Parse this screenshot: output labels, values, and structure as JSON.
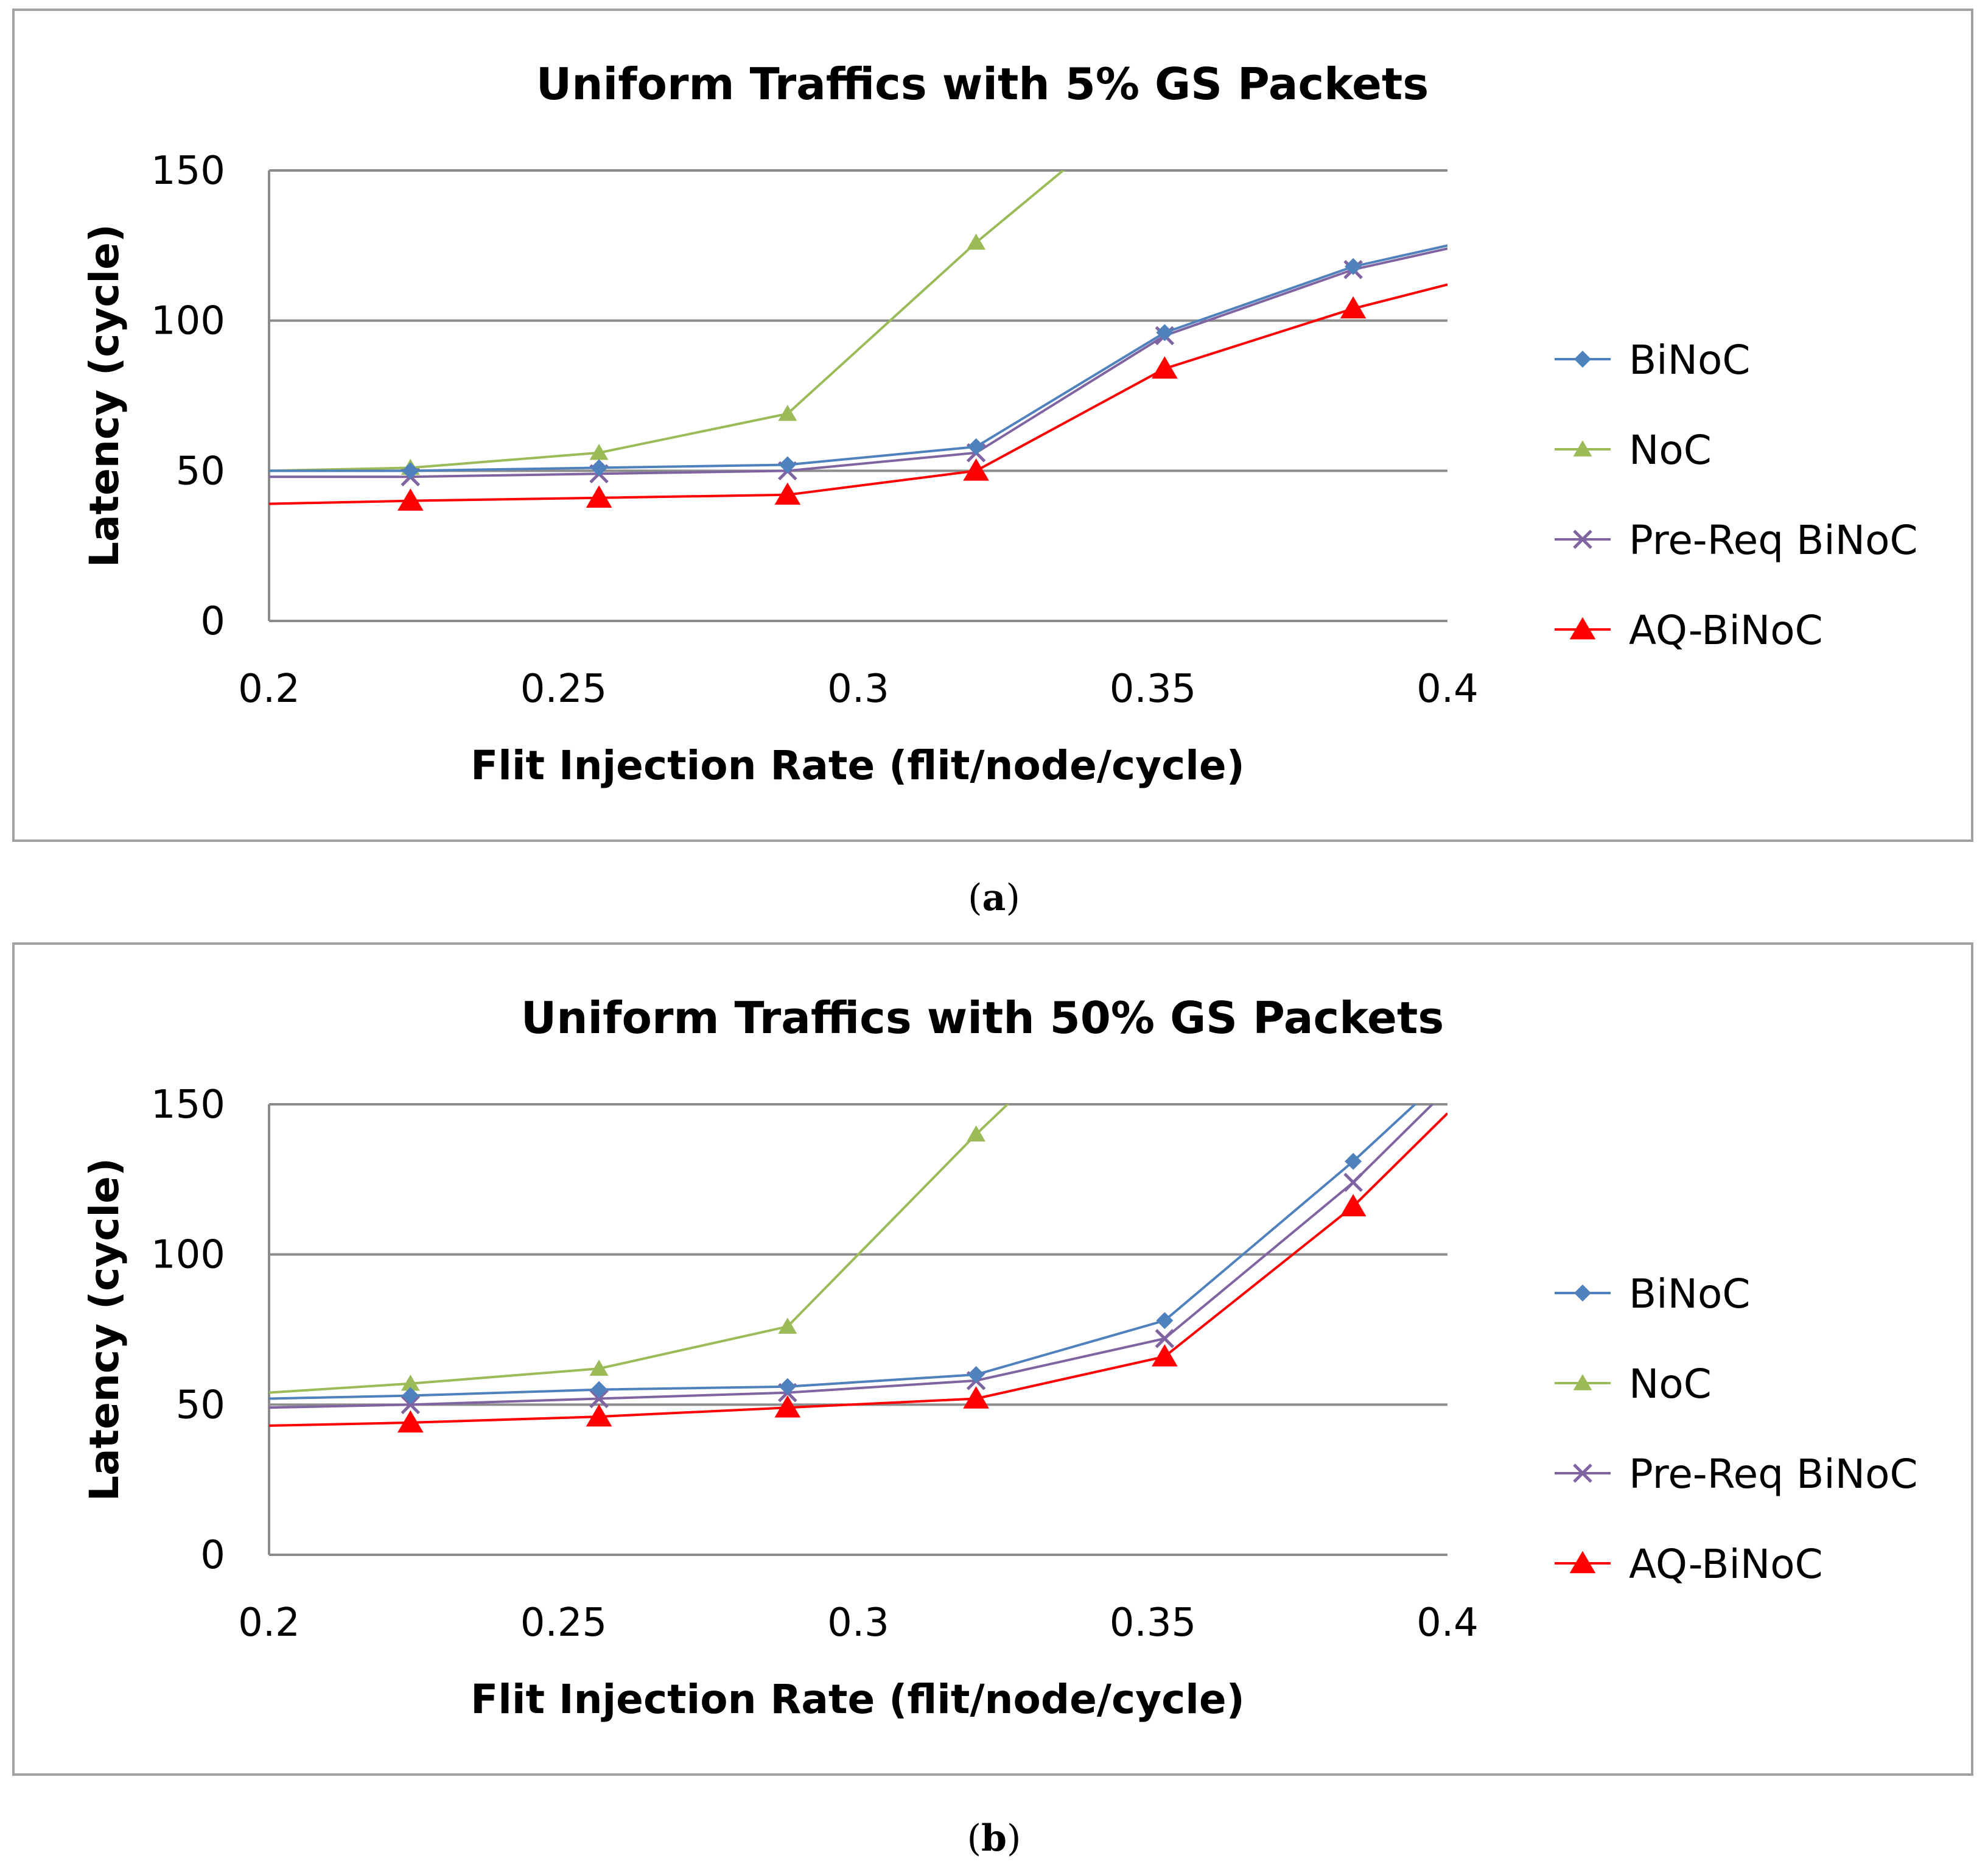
{
  "colors": {
    "grid": "#8c8c8c",
    "axis": "#8c8c8c",
    "border": "#a0a0a0",
    "binoc": "#4f81bd",
    "noc": "#9bbb59",
    "prereq": "#8064a2",
    "aqbinoc": "#ff0000"
  },
  "legend_placement": "right",
  "captions": [
    {
      "open": "(",
      "letter": "a",
      "close": ")"
    },
    {
      "open": "(",
      "letter": "b",
      "close": ")"
    }
  ],
  "chart_data": [
    {
      "type": "line",
      "title": "Uniform Traffics with 5% GS Packets",
      "xlabel": "Flit Injection Rate (flit/node/cycle)",
      "ylabel": "Latency (cycle)",
      "xlim": [
        0.2,
        0.4
      ],
      "ylim": [
        0,
        150
      ],
      "xticks": [
        "0.2",
        "0.25",
        "0.3",
        "0.35",
        "0.4"
      ],
      "yticks": [
        "0",
        "50",
        "100",
        "150"
      ],
      "grid": true,
      "x": [
        0.2,
        0.224,
        0.256,
        0.288,
        0.32,
        0.352,
        0.384,
        0.4
      ],
      "series": [
        {
          "name": "BiNoC",
          "color": "#4f81bd",
          "marker": "diamond",
          "values": [
            50,
            50,
            51,
            52,
            58,
            96,
            118,
            125
          ]
        },
        {
          "name": "NoC",
          "color": "#9bbb59",
          "marker": "triangle",
          "values": [
            50,
            51,
            56,
            69,
            126,
            178,
            null,
            null
          ]
        },
        {
          "name": "Pre-Req BiNoC",
          "color": "#8064a2",
          "marker": "x",
          "values": [
            48,
            48,
            49,
            50,
            56,
            95,
            117,
            124
          ]
        },
        {
          "name": "AQ-BiNoC",
          "color": "#ff0000",
          "marker": "triangle-filled",
          "values": [
            39,
            40,
            41,
            42,
            50,
            84,
            104,
            112
          ]
        }
      ]
    },
    {
      "type": "line",
      "title": "Uniform Traffics with 50% GS Packets",
      "xlabel": "Flit Injection Rate (flit/node/cycle)",
      "ylabel": "Latency (cycle)",
      "xlim": [
        0.2,
        0.4
      ],
      "ylim": [
        0,
        150
      ],
      "xticks": [
        "0.2",
        "0.25",
        "0.3",
        "0.35",
        "0.4"
      ],
      "yticks": [
        "0",
        "50",
        "100",
        "150"
      ],
      "grid": true,
      "x": [
        0.2,
        0.224,
        0.256,
        0.288,
        0.32,
        0.352,
        0.384,
        0.4
      ],
      "series": [
        {
          "name": "BiNoC",
          "color": "#4f81bd",
          "marker": "diamond",
          "values": [
            52,
            53,
            55,
            56,
            60,
            78,
            131,
            160
          ]
        },
        {
          "name": "NoC",
          "color": "#9bbb59",
          "marker": "triangle",
          "values": [
            54,
            57,
            62,
            76,
            140,
            200,
            null,
            null
          ]
        },
        {
          "name": "Pre-Req BiNoC",
          "color": "#8064a2",
          "marker": "x",
          "values": [
            49,
            50,
            52,
            54,
            58,
            72,
            124,
            155
          ]
        },
        {
          "name": "AQ-BiNoC",
          "color": "#ff0000",
          "marker": "triangle-filled",
          "values": [
            43,
            44,
            46,
            49,
            52,
            66,
            116,
            147
          ]
        }
      ]
    }
  ]
}
